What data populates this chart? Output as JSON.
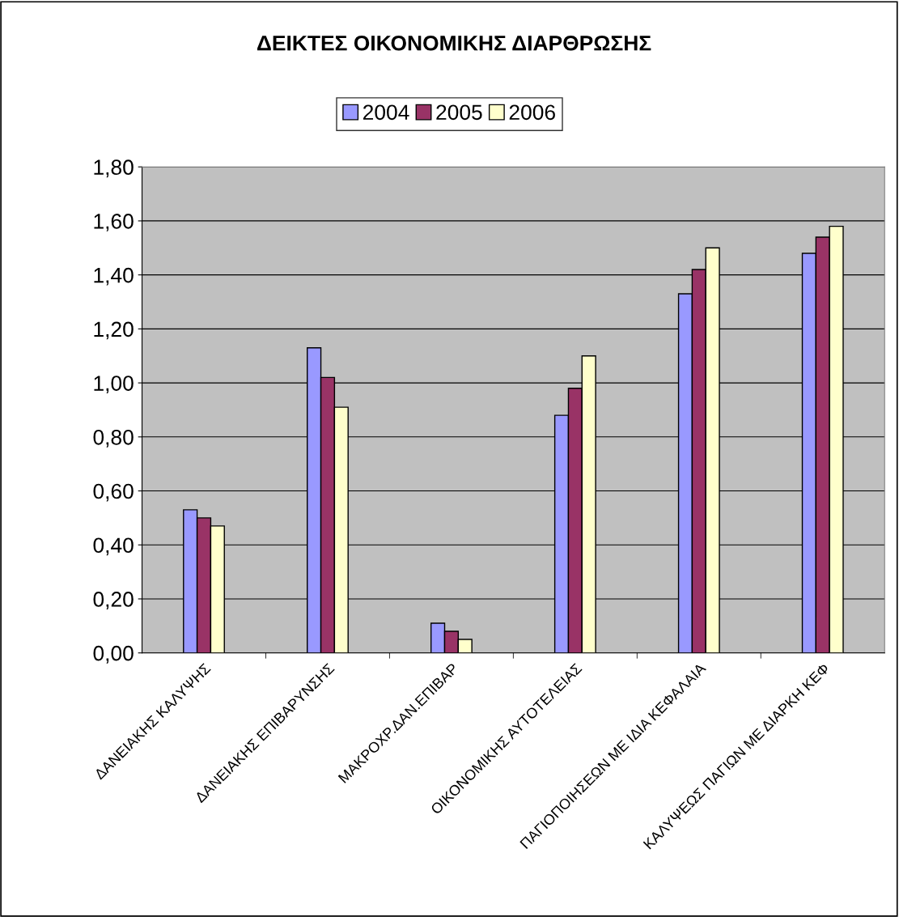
{
  "chart_data": {
    "type": "bar",
    "title": "ΔΕΙΚΤΕΣ ΟΙΚΟΝΟΜΙΚΗΣ ΔΙΑΡΘΡΩΣΗΣ",
    "categories": [
      "ΔΑΝΕΙΑΚΗΣ ΚΑΛΥΨΗΣ",
      "ΔΑΝΕΙΑΚΗΣ ΕΠΙΒΑΡΥΝΣΗΣ",
      "ΜΑΚΡΟΧΡ.ΔΑΝ.ΕΠΙΒΑΡ",
      "ΟΙΚΟΝΟΜΙΚΗΣ ΑΥΤΟΤΕΛΕΙΑΣ",
      "ΠΑΓΙΟΠΟΙΗΣΕΩΝ ΜΕ ΙΔΙΑ ΚΕΦΑΛΑΙΑ",
      "ΚΑΛΥΨΕΩΣ ΠΑΓΙΩΝ ΜΕ ΔΙΑΡΚΗ ΚΕΦ"
    ],
    "series": [
      {
        "name": "2004",
        "color": "#9999ff",
        "values": [
          0.53,
          1.13,
          0.11,
          0.88,
          1.33,
          1.48
        ]
      },
      {
        "name": "2005",
        "color": "#993366",
        "values": [
          0.5,
          1.02,
          0.08,
          0.98,
          1.42,
          1.54
        ]
      },
      {
        "name": "2006",
        "color": "#ffffcc",
        "values": [
          0.47,
          0.91,
          0.05,
          1.1,
          1.5,
          1.58
        ]
      }
    ],
    "ylim": [
      0,
      1.8
    ],
    "yticks": [
      {
        "value": 0,
        "label": "0,00"
      },
      {
        "value": 0.2,
        "label": "0,20"
      },
      {
        "value": 0.4,
        "label": "0,40"
      },
      {
        "value": 0.6,
        "label": "0,60"
      },
      {
        "value": 0.8,
        "label": "0,80"
      },
      {
        "value": 1.0,
        "label": "1,00"
      },
      {
        "value": 1.2,
        "label": "1,20"
      },
      {
        "value": 1.4,
        "label": "1,40"
      },
      {
        "value": 1.6,
        "label": "1,60"
      },
      {
        "value": 1.8,
        "label": "1,80"
      }
    ],
    "grid": "y",
    "legend": "top"
  }
}
